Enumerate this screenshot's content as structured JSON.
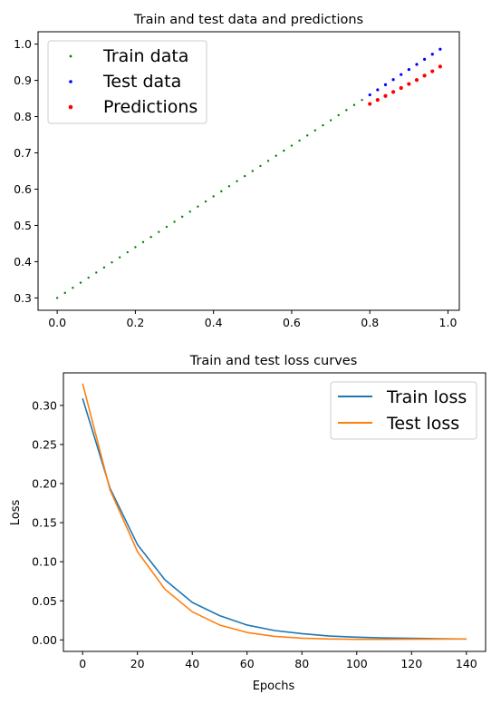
{
  "chart_data": [
    {
      "type": "scatter",
      "title": "Train and test data and predictions",
      "xlabel": "",
      "ylabel": "",
      "xlim": [
        -0.049,
        1.029
      ],
      "ylim": [
        0.266,
        1.034
      ],
      "xticks": [
        0.0,
        0.2,
        0.4,
        0.6,
        0.8,
        1.0
      ],
      "xtick_labels": [
        "0.0",
        "0.2",
        "0.4",
        "0.6",
        "0.8",
        "1.0"
      ],
      "yticks": [
        0.3,
        0.4,
        0.5,
        0.6,
        0.7,
        0.8,
        0.9,
        1.0
      ],
      "ytick_labels": [
        "0.3",
        "0.4",
        "0.5",
        "0.6",
        "0.7",
        "0.8",
        "0.9",
        "1.0"
      ],
      "grid": false,
      "legend_position": "upper-left",
      "series": [
        {
          "name": "Train data",
          "color": "#008000",
          "x": [
            0.0,
            0.02,
            0.04,
            0.06,
            0.08,
            0.1,
            0.12,
            0.14,
            0.16,
            0.18,
            0.2,
            0.22,
            0.24,
            0.26,
            0.28,
            0.3,
            0.32,
            0.34,
            0.36,
            0.38,
            0.4,
            0.42,
            0.44,
            0.46,
            0.48,
            0.5,
            0.52,
            0.54,
            0.56,
            0.58,
            0.6,
            0.62,
            0.64,
            0.66,
            0.68,
            0.7,
            0.72,
            0.74,
            0.76,
            0.78
          ],
          "y": [
            0.3,
            0.314,
            0.328,
            0.342,
            0.356,
            0.37,
            0.384,
            0.398,
            0.412,
            0.426,
            0.44,
            0.454,
            0.468,
            0.482,
            0.496,
            0.51,
            0.524,
            0.538,
            0.552,
            0.566,
            0.58,
            0.594,
            0.608,
            0.622,
            0.636,
            0.65,
            0.664,
            0.678,
            0.692,
            0.706,
            0.72,
            0.734,
            0.748,
            0.762,
            0.776,
            0.79,
            0.804,
            0.818,
            0.832,
            0.846
          ]
        },
        {
          "name": "Test data",
          "color": "#0000ff",
          "x": [
            0.8,
            0.82,
            0.84,
            0.86,
            0.88,
            0.9,
            0.92,
            0.94,
            0.96,
            0.98
          ],
          "y": [
            0.86,
            0.874,
            0.888,
            0.902,
            0.916,
            0.93,
            0.944,
            0.958,
            0.972,
            0.986
          ]
        },
        {
          "name": "Predictions",
          "color": "#ff0000",
          "x": [
            0.8,
            0.82,
            0.84,
            0.86,
            0.88,
            0.9,
            0.92,
            0.94,
            0.96,
            0.98
          ],
          "y": [
            0.835,
            0.846,
            0.857,
            0.868,
            0.879,
            0.89,
            0.901,
            0.913,
            0.925,
            0.938
          ]
        }
      ]
    },
    {
      "type": "line",
      "title": "Train and test loss curves",
      "xlabel": "Epochs",
      "ylabel": "Loss",
      "xlim": [
        -7,
        147
      ],
      "ylim": [
        -0.0147,
        0.3416
      ],
      "xticks": [
        0,
        20,
        40,
        60,
        80,
        100,
        120,
        140
      ],
      "xtick_labels": [
        "0",
        "20",
        "40",
        "60",
        "80",
        "100",
        "120",
        "140"
      ],
      "yticks": [
        0.0,
        0.05,
        0.1,
        0.15,
        0.2,
        0.25,
        0.3
      ],
      "ytick_labels": [
        "0.00",
        "0.05",
        "0.10",
        "0.15",
        "0.20",
        "0.25",
        "0.30"
      ],
      "grid": false,
      "legend_position": "upper-right",
      "x": [
        0,
        10,
        20,
        30,
        40,
        50,
        60,
        70,
        80,
        90,
        100,
        110,
        120,
        130,
        140
      ],
      "series": [
        {
          "name": "Train loss",
          "color": "#1f77b4",
          "values": [
            0.309,
            0.194,
            0.122,
            0.077,
            0.048,
            0.031,
            0.019,
            0.012,
            0.008,
            0.005,
            0.0035,
            0.0025,
            0.002,
            0.0015,
            0.0012
          ]
        },
        {
          "name": "Test loss",
          "color": "#ff7f0e",
          "values": [
            0.328,
            0.192,
            0.113,
            0.065,
            0.036,
            0.019,
            0.0095,
            0.0045,
            0.0022,
            0.0012,
            0.0008,
            0.0008,
            0.0009,
            0.0011,
            0.0012
          ]
        }
      ]
    }
  ]
}
